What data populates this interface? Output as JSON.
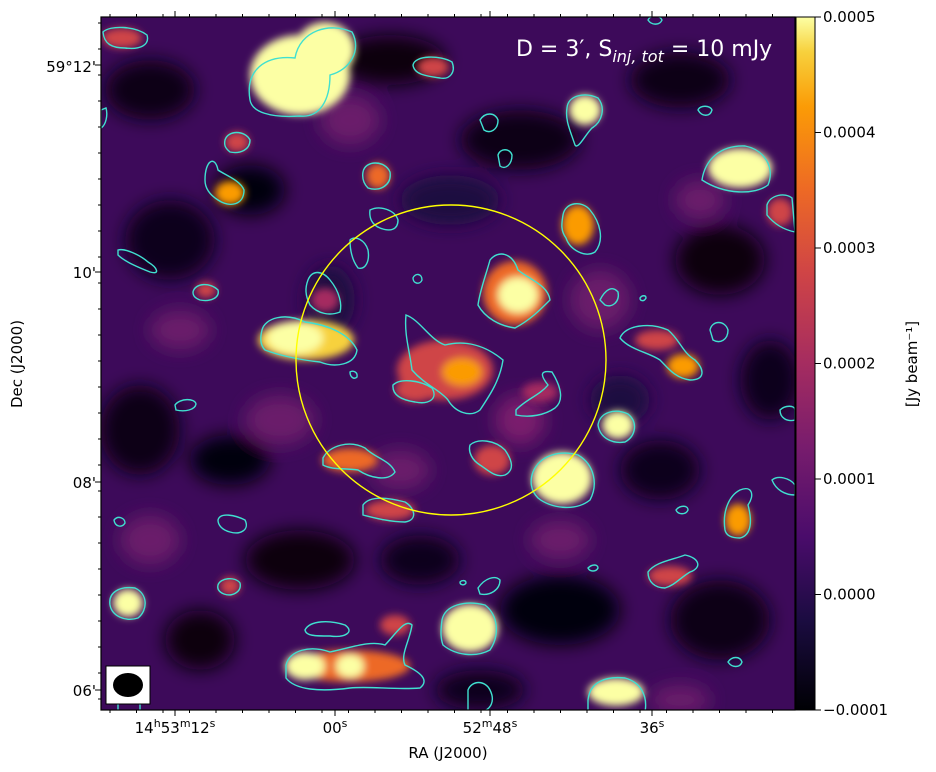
{
  "figure": {
    "annotation": {
      "prefix": "D = 3′, S",
      "subscript": "inj, tot",
      "suffix": " = 10 mJy"
    },
    "xlabel": "RA (J2000)",
    "ylabel": "Dec (J2000)",
    "colorbar_label": "[Jy beam⁻¹]",
    "colormap": "inferno",
    "contour_color": "#40e0d0",
    "circle_color": "#ffff00",
    "xticks": [
      "14h53m12s",
      "00s",
      "52m48s",
      "36s"
    ],
    "xticks_parts": [
      {
        "h": "14",
        "hs": "h",
        "m": "53",
        "ms": "m",
        "s": "12",
        "ss": "s"
      },
      {
        "s": "00",
        "ss": "s"
      },
      {
        "m": "52",
        "ms": "m",
        "s": "48",
        "ss": "s"
      },
      {
        "s": "36",
        "ss": "s"
      }
    ],
    "yticks": [
      "59°12'",
      "10'",
      "08'",
      "06'"
    ],
    "colorbar_ticks": [
      "0.0005",
      "0.0004",
      "0.0003",
      "0.0002",
      "0.0001",
      "0.0000",
      "−0.0001"
    ],
    "colorbar_range": [
      -0.0001,
      0.0005
    ]
  }
}
